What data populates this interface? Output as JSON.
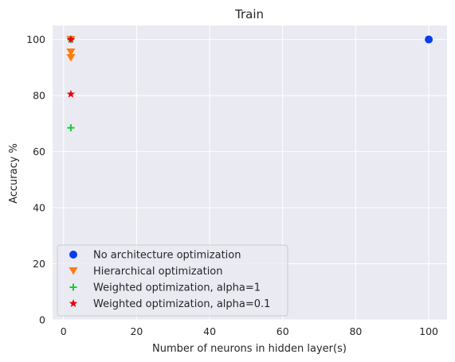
{
  "chart_data": {
    "type": "scatter",
    "title": "Train",
    "xlabel": "Number of neurons in hidden layer(s)",
    "ylabel": "Accuracy %",
    "xlim": [
      -3,
      105
    ],
    "ylim": [
      0,
      105
    ],
    "x_ticks": [
      0,
      20,
      40,
      60,
      80,
      100
    ],
    "y_ticks": [
      0,
      20,
      40,
      60,
      80,
      100
    ],
    "grid": true,
    "legend_position": "lower-left",
    "series": [
      {
        "name": "No architecture optimization",
        "marker": "circle",
        "color": "#0a3cf0",
        "points": [
          [
            100,
            100
          ]
        ]
      },
      {
        "name": "Hierarchical optimization",
        "marker": "triangle-down",
        "color": "#ff7c0f",
        "points": [
          [
            2,
            93.5
          ],
          [
            2,
            95.5
          ],
          [
            2,
            100
          ]
        ]
      },
      {
        "name": "Weighted optimization, alpha=1",
        "marker": "plus",
        "color": "#1ac938",
        "points": [
          [
            2,
            68.5
          ],
          [
            2,
            100
          ]
        ]
      },
      {
        "name": "Weighted optimization, alpha=0.1",
        "marker": "star",
        "color": "#e8000b",
        "points": [
          [
            2,
            80.5
          ],
          [
            2,
            100
          ]
        ]
      }
    ]
  }
}
